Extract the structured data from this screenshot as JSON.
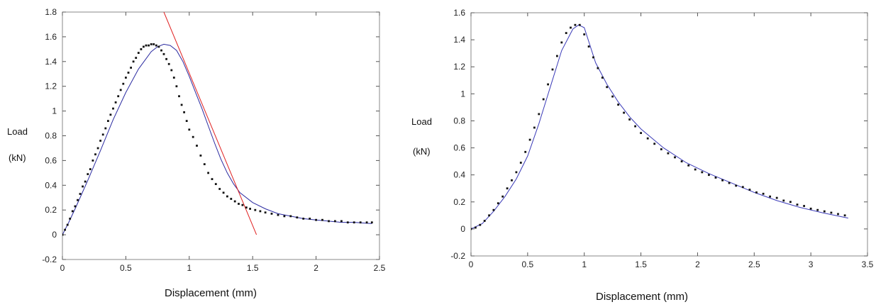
{
  "chart_data": [
    {
      "type": "scatter",
      "xlabel": "Displacement (mm)",
      "ylabel_line1": "Load",
      "ylabel_line2": "(kN)",
      "xlim": [
        0,
        2.5
      ],
      "ylim": [
        -0.2,
        1.8
      ],
      "xticks": [
        0,
        0.5,
        1,
        1.5,
        2,
        2.5
      ],
      "xtick_labels": [
        "0",
        "0.5",
        "1",
        "1.5",
        "2",
        "2.5"
      ],
      "yticks": [
        -0.2,
        0,
        0.2,
        0.4,
        0.6,
        0.8,
        1,
        1.2,
        1.4,
        1.6,
        1.8
      ],
      "ytick_labels": [
        "-0.2",
        "0",
        "0.2",
        "0.4",
        "0.6",
        "0.8",
        "1",
        "1.2",
        "1.4",
        "1.6",
        "1.8"
      ],
      "grid": false,
      "colors": {
        "points": "#111111",
        "fit": "#2a2aa0",
        "tangent": "#e02020"
      },
      "series": [
        {
          "kind": "points",
          "x": [
            0,
            0.02,
            0.04,
            0.06,
            0.08,
            0.1,
            0.12,
            0.14,
            0.16,
            0.18,
            0.2,
            0.22,
            0.24,
            0.26,
            0.28,
            0.3,
            0.32,
            0.34,
            0.36,
            0.38,
            0.4,
            0.42,
            0.44,
            0.46,
            0.48,
            0.5,
            0.52,
            0.54,
            0.56,
            0.58,
            0.6,
            0.62,
            0.64,
            0.66,
            0.68,
            0.7,
            0.72,
            0.74,
            0.76,
            0.78,
            0.8,
            0.82,
            0.84,
            0.86,
            0.88,
            0.9,
            0.92,
            0.94,
            0.96,
            0.98,
            1.0,
            1.03,
            1.06,
            1.09,
            1.12,
            1.15,
            1.18,
            1.21,
            1.24,
            1.27,
            1.3,
            1.33,
            1.36,
            1.39,
            1.42,
            1.45,
            1.48,
            1.52,
            1.56,
            1.6,
            1.65,
            1.7,
            1.75,
            1.8,
            1.85,
            1.9,
            1.95,
            2.0,
            2.05,
            2.1,
            2.15,
            2.2,
            2.25,
            2.3,
            2.35,
            2.4,
            2.44
          ],
          "y": [
            0,
            0.04,
            0.08,
            0.13,
            0.19,
            0.23,
            0.28,
            0.33,
            0.39,
            0.43,
            0.49,
            0.53,
            0.6,
            0.65,
            0.7,
            0.76,
            0.81,
            0.86,
            0.92,
            0.97,
            1.02,
            1.07,
            1.12,
            1.17,
            1.22,
            1.27,
            1.31,
            1.35,
            1.4,
            1.43,
            1.47,
            1.5,
            1.52,
            1.53,
            1.53,
            1.54,
            1.54,
            1.53,
            1.52,
            1.49,
            1.46,
            1.42,
            1.38,
            1.33,
            1.27,
            1.2,
            1.12,
            1.05,
            0.99,
            0.92,
            0.85,
            0.79,
            0.72,
            0.64,
            0.57,
            0.5,
            0.45,
            0.41,
            0.37,
            0.34,
            0.31,
            0.29,
            0.27,
            0.25,
            0.24,
            0.22,
            0.21,
            0.2,
            0.19,
            0.18,
            0.17,
            0.16,
            0.15,
            0.15,
            0.14,
            0.13,
            0.13,
            0.12,
            0.12,
            0.11,
            0.11,
            0.11,
            0.1,
            0.1,
            0.1,
            0.1,
            0.1
          ]
        },
        {
          "kind": "line",
          "x": [
            0,
            0.05,
            0.1,
            0.2,
            0.3,
            0.4,
            0.5,
            0.6,
            0.7,
            0.75,
            0.8,
            0.85,
            0.9,
            0.95,
            1.0,
            1.05,
            1.1,
            1.15,
            1.2,
            1.25,
            1.3,
            1.35,
            1.4,
            1.5,
            1.6,
            1.7,
            1.8,
            1.9,
            2.0,
            2.1,
            2.2,
            2.3,
            2.44
          ],
          "y": [
            0,
            0.1,
            0.21,
            0.44,
            0.68,
            0.93,
            1.15,
            1.34,
            1.48,
            1.52,
            1.54,
            1.53,
            1.49,
            1.4,
            1.28,
            1.15,
            1.02,
            0.88,
            0.74,
            0.61,
            0.5,
            0.41,
            0.34,
            0.26,
            0.21,
            0.17,
            0.15,
            0.13,
            0.12,
            0.11,
            0.1,
            0.1,
            0.09
          ]
        },
        {
          "kind": "tangent",
          "x": [
            0.8,
            1.53
          ],
          "y": [
            1.8,
            0
          ]
        }
      ]
    },
    {
      "type": "scatter",
      "xlabel": "Displacement (mm)",
      "ylabel_line1": "Load",
      "ylabel_line2": "(kN)",
      "xlim": [
        0,
        3.5
      ],
      "ylim": [
        -0.2,
        1.6
      ],
      "xticks": [
        0,
        0.5,
        1,
        1.5,
        2,
        2.5,
        3,
        3.5
      ],
      "xtick_labels": [
        "0",
        "0.5",
        "1",
        "1.5",
        "2",
        "2.5",
        "3",
        "3.5"
      ],
      "yticks": [
        -0.2,
        0,
        0.2,
        0.4,
        0.6,
        0.8,
        1,
        1.2,
        1.4,
        1.6
      ],
      "ytick_labels": [
        "-0.2",
        "0",
        "0.2",
        "0.4",
        "0.6",
        "0.8",
        "1",
        "1.2",
        "1.4",
        "1.6"
      ],
      "grid": false,
      "colors": {
        "points": "#111111",
        "fit": "#3a3ab8"
      },
      "series": [
        {
          "kind": "points",
          "x": [
            0,
            0.04,
            0.08,
            0.12,
            0.16,
            0.2,
            0.24,
            0.28,
            0.32,
            0.36,
            0.4,
            0.44,
            0.48,
            0.52,
            0.56,
            0.6,
            0.64,
            0.68,
            0.72,
            0.76,
            0.8,
            0.84,
            0.88,
            0.92,
            0.96,
            1.0,
            1.04,
            1.08,
            1.12,
            1.16,
            1.2,
            1.25,
            1.3,
            1.35,
            1.4,
            1.45,
            1.5,
            1.56,
            1.62,
            1.68,
            1.74,
            1.8,
            1.86,
            1.92,
            1.98,
            2.04,
            2.1,
            2.16,
            2.22,
            2.28,
            2.34,
            2.4,
            2.46,
            2.52,
            2.58,
            2.64,
            2.7,
            2.76,
            2.82,
            2.88,
            2.94,
            3.0,
            3.06,
            3.12,
            3.18,
            3.24,
            3.3
          ],
          "y": [
            0,
            0.01,
            0.03,
            0.06,
            0.1,
            0.14,
            0.19,
            0.24,
            0.3,
            0.36,
            0.42,
            0.49,
            0.57,
            0.66,
            0.75,
            0.85,
            0.96,
            1.07,
            1.18,
            1.28,
            1.38,
            1.45,
            1.49,
            1.51,
            1.51,
            1.44,
            1.35,
            1.27,
            1.19,
            1.12,
            1.05,
            0.98,
            0.92,
            0.86,
            0.81,
            0.76,
            0.71,
            0.67,
            0.63,
            0.59,
            0.56,
            0.53,
            0.5,
            0.47,
            0.44,
            0.42,
            0.4,
            0.38,
            0.36,
            0.34,
            0.32,
            0.31,
            0.29,
            0.27,
            0.26,
            0.24,
            0.23,
            0.21,
            0.2,
            0.18,
            0.17,
            0.15,
            0.14,
            0.13,
            0.12,
            0.11,
            0.1
          ]
        },
        {
          "kind": "line",
          "x": [
            0,
            0.1,
            0.2,
            0.3,
            0.4,
            0.5,
            0.6,
            0.7,
            0.8,
            0.9,
            0.95,
            1.0,
            1.1,
            1.2,
            1.3,
            1.4,
            1.5,
            1.7,
            1.9,
            2.1,
            2.3,
            2.5,
            2.7,
            2.9,
            3.1,
            3.33
          ],
          "y": [
            0,
            0.04,
            0.13,
            0.24,
            0.37,
            0.54,
            0.78,
            1.05,
            1.32,
            1.48,
            1.51,
            1.49,
            1.23,
            1.07,
            0.94,
            0.83,
            0.74,
            0.6,
            0.49,
            0.41,
            0.34,
            0.27,
            0.21,
            0.16,
            0.12,
            0.08
          ]
        }
      ]
    }
  ]
}
